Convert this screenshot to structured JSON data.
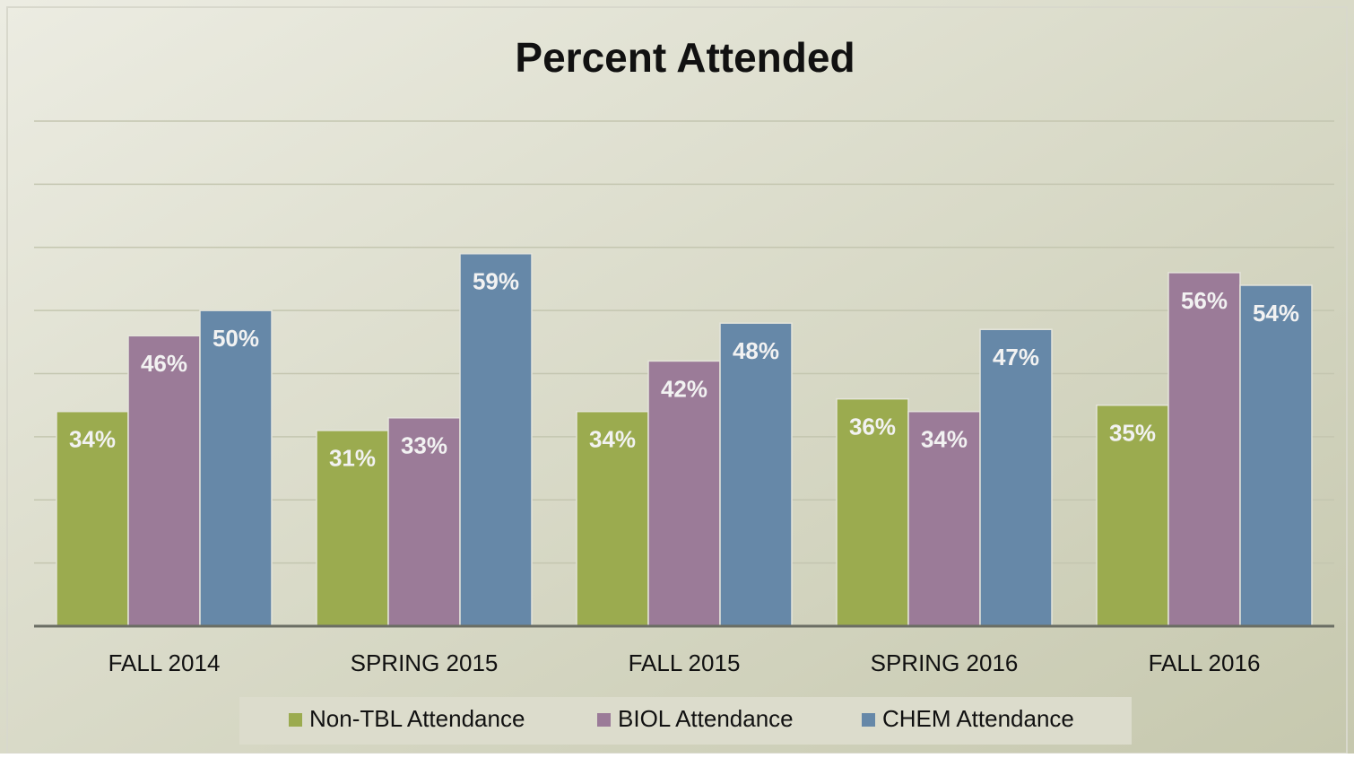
{
  "chart_data": {
    "type": "bar",
    "title": "Percent Attended",
    "categories": [
      "FALL 2014",
      "SPRING 2015",
      "FALL 2015",
      "SPRING 2016",
      "FALL 2016"
    ],
    "series": [
      {
        "name": "Non-TBL Attendance",
        "color": "#9bab4f",
        "values": [
          34,
          31,
          34,
          36,
          35
        ],
        "value_labels": [
          "34%",
          "31%",
          "34%",
          "36%",
          "35%"
        ]
      },
      {
        "name": "BIOL Attendance",
        "color": "#9b7b98",
        "values": [
          46,
          33,
          42,
          34,
          56
        ],
        "value_labels": [
          "46%",
          "33%",
          "42%",
          "34%",
          "56%"
        ]
      },
      {
        "name": "CHEM Attendance",
        "color": "#6688a8",
        "values": [
          50,
          59,
          48,
          47,
          54
        ],
        "value_labels": [
          "50%",
          "59%",
          "48%",
          "47%",
          "54%"
        ]
      }
    ],
    "ylim": [
      0,
      80
    ],
    "yticks": [
      0,
      10,
      20,
      30,
      40,
      50,
      60,
      70,
      80
    ],
    "grid": true,
    "legend": "bottom"
  }
}
